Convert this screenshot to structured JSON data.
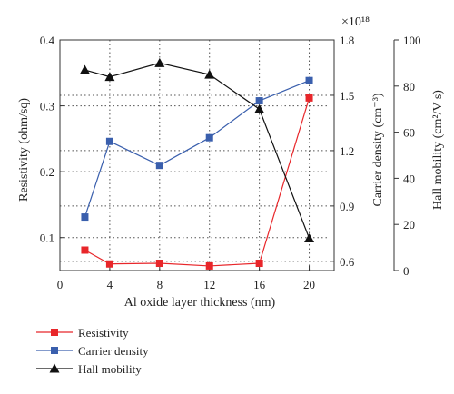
{
  "chart_data": {
    "type": "line",
    "title": "",
    "xlabel": "Al oxide layer thickness (nm)",
    "x": [
      2,
      4,
      8,
      12,
      16,
      20
    ],
    "xlim": [
      0,
      22
    ],
    "xticks": [
      "0",
      "4",
      "8",
      "12",
      "16",
      "20"
    ],
    "grid": "dotted",
    "legend_position": "bottom-left, below plot",
    "axes": {
      "left": {
        "label": "Resistivity (ohm/sq)",
        "ylim": [
          0.05,
          0.4
        ],
        "ticks": [
          "0.1",
          "0.2",
          "0.3",
          "0.4"
        ]
      },
      "right1": {
        "label": "Carrier density (cm⁻³)",
        "multiplier": "×10¹⁸",
        "ylim": [
          0.55,
          1.8
        ],
        "ticks": [
          "0.6",
          "0.9",
          "1.2",
          "1.5",
          "1.8"
        ]
      },
      "right2": {
        "label": "Hall mobility (cm²/V s)",
        "ylim": [
          0,
          100
        ],
        "ticks": [
          "0",
          "20",
          "40",
          "60",
          "80",
          "100"
        ]
      }
    },
    "series": [
      {
        "name": "Resistivity",
        "axis": "left",
        "marker": "square",
        "color": "#e8262a",
        "values": [
          0.081,
          0.06,
          0.061,
          0.057,
          0.061,
          0.312
        ]
      },
      {
        "name": "Carrier density",
        "axis": "right1",
        "marker": "square",
        "color": "#3a5fad",
        "values": [
          0.84,
          1.25,
          1.12,
          1.27,
          1.47,
          1.58
        ]
      },
      {
        "name": "Hall mobility",
        "axis": "right2",
        "marker": "triangle",
        "color": "#111111",
        "values": [
          87,
          84,
          90,
          85,
          70,
          14
        ]
      }
    ]
  }
}
